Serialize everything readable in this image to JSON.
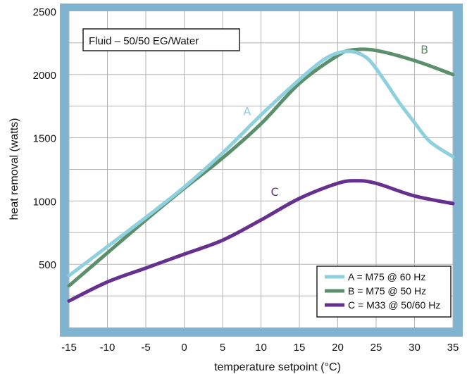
{
  "chart_data": {
    "type": "line",
    "title": "Fluid – 50/50 EG/Water",
    "xlabel": "temperature setpoint (°C)",
    "ylabel": "heat removal (watts)",
    "xlim": [
      -15,
      35
    ],
    "ylim": [
      0,
      2500
    ],
    "x_ticks": [
      "-15",
      "-10",
      "-5",
      "0",
      "5",
      "10",
      "15",
      "20",
      "25",
      "30",
      "35"
    ],
    "y_ticks": [
      "500",
      "1000",
      "1500",
      "2000",
      "2500"
    ],
    "grid": true,
    "legend_position": "bottom-right",
    "series": [
      {
        "name": "A = M75 @ 60 Hz",
        "label": "A",
        "color": "#8fd0de",
        "x": [
          -15,
          -10,
          -5,
          0,
          5,
          10,
          15,
          18,
          20,
          22,
          24,
          26,
          28,
          30,
          32,
          35
        ],
        "values": [
          410,
          640,
          870,
          1110,
          1380,
          1680,
          1960,
          2110,
          2170,
          2180,
          2120,
          1960,
          1780,
          1620,
          1470,
          1350
        ]
      },
      {
        "name": "B = M75 @ 50 Hz",
        "label": "B",
        "color": "#5c8f6b",
        "x": [
          -15,
          -10,
          -5,
          0,
          5,
          10,
          15,
          20,
          22,
          25,
          30,
          35
        ],
        "values": [
          330,
          590,
          850,
          1100,
          1340,
          1610,
          1930,
          2150,
          2195,
          2190,
          2110,
          2000
        ]
      },
      {
        "name": "C = M33 @ 50/60 Hz",
        "label": "C",
        "color": "#65308e",
        "x": [
          -15,
          -10,
          -5,
          0,
          5,
          10,
          15,
          20,
          22.5,
          25,
          30,
          35
        ],
        "values": [
          210,
          360,
          470,
          580,
          690,
          850,
          1020,
          1140,
          1160,
          1140,
          1040,
          980
        ]
      }
    ]
  }
}
